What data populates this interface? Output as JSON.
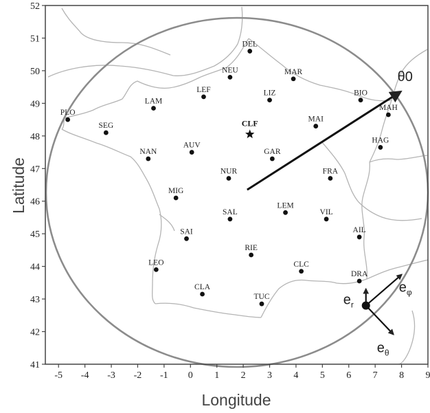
{
  "axes": {
    "xlabel": "Longitude",
    "ylabel": "Latitude",
    "xlim": [
      -5.5,
      9
    ],
    "ylim": [
      41,
      52
    ],
    "xticks": [
      -5,
      -4,
      -3,
      -2,
      -1,
      0,
      1,
      2,
      3,
      4,
      5,
      6,
      7,
      8,
      9
    ],
    "yticks": [
      41,
      42,
      43,
      44,
      45,
      46,
      47,
      48,
      49,
      50,
      51,
      52
    ]
  },
  "stations": [
    {
      "code": "DEL",
      "lon": 2.25,
      "lat": 50.6
    },
    {
      "code": "NEU",
      "lon": 1.5,
      "lat": 49.8
    },
    {
      "code": "MAR",
      "lon": 3.9,
      "lat": 49.75
    },
    {
      "code": "LEF",
      "lon": 0.5,
      "lat": 49.2
    },
    {
      "code": "LIZ",
      "lon": 3.0,
      "lat": 49.1
    },
    {
      "code": "BIO",
      "lon": 6.45,
      "lat": 49.1
    },
    {
      "code": "LAM",
      "lon": -1.4,
      "lat": 48.85
    },
    {
      "code": "MAH",
      "lon": 7.5,
      "lat": 48.65
    },
    {
      "code": "PLO",
      "lon": -4.65,
      "lat": 48.5
    },
    {
      "code": "MAI",
      "lon": 4.75,
      "lat": 48.3
    },
    {
      "code": "SEG",
      "lon": -3.2,
      "lat": 48.1
    },
    {
      "code": "HAG",
      "lon": 7.2,
      "lat": 47.65
    },
    {
      "code": "AUV",
      "lon": 0.05,
      "lat": 47.5
    },
    {
      "code": "NAN",
      "lon": -1.6,
      "lat": 47.3
    },
    {
      "code": "GAR",
      "lon": 3.1,
      "lat": 47.3
    },
    {
      "code": "NUR",
      "lon": 1.45,
      "lat": 46.7
    },
    {
      "code": "FRA",
      "lon": 5.3,
      "lat": 46.7
    },
    {
      "code": "MIG",
      "lon": -0.55,
      "lat": 46.1
    },
    {
      "code": "LEM",
      "lon": 3.6,
      "lat": 45.65
    },
    {
      "code": "SAL",
      "lon": 1.5,
      "lat": 45.45
    },
    {
      "code": "VIL",
      "lon": 5.15,
      "lat": 45.45
    },
    {
      "code": "AIL",
      "lon": 6.4,
      "lat": 44.9
    },
    {
      "code": "SAI",
      "lon": -0.15,
      "lat": 44.85
    },
    {
      "code": "RIE",
      "lon": 2.3,
      "lat": 44.35
    },
    {
      "code": "LEO",
      "lon": -1.3,
      "lat": 43.9
    },
    {
      "code": "CLC",
      "lon": 4.2,
      "lat": 43.85
    },
    {
      "code": "DRA",
      "lon": 6.4,
      "lat": 43.55
    },
    {
      "code": "CLA",
      "lon": 0.45,
      "lat": 43.15
    },
    {
      "code": "TUC",
      "lon": 2.7,
      "lat": 42.85
    }
  ],
  "reference_station": {
    "code": "CLF",
    "lon": 2.25,
    "lat": 48.05
  },
  "theta0_vector": {
    "label": "θ0",
    "from": {
      "lon": 2.15,
      "lat": 46.35
    },
    "to": {
      "lon": 7.95,
      "lat": 49.35
    }
  },
  "local_basis": {
    "origin": {
      "lon": 6.65,
      "lat": 42.8
    },
    "er": {
      "label": "e",
      "sub": "r"
    },
    "ephi": {
      "label": "e",
      "sub": "φ"
    },
    "etheta": {
      "label": "e",
      "sub": "θ"
    }
  },
  "colors": {
    "coastline": "#b4b4b4",
    "circle": "#8c8c8c",
    "frame": "#444444",
    "marks": "#111111"
  }
}
